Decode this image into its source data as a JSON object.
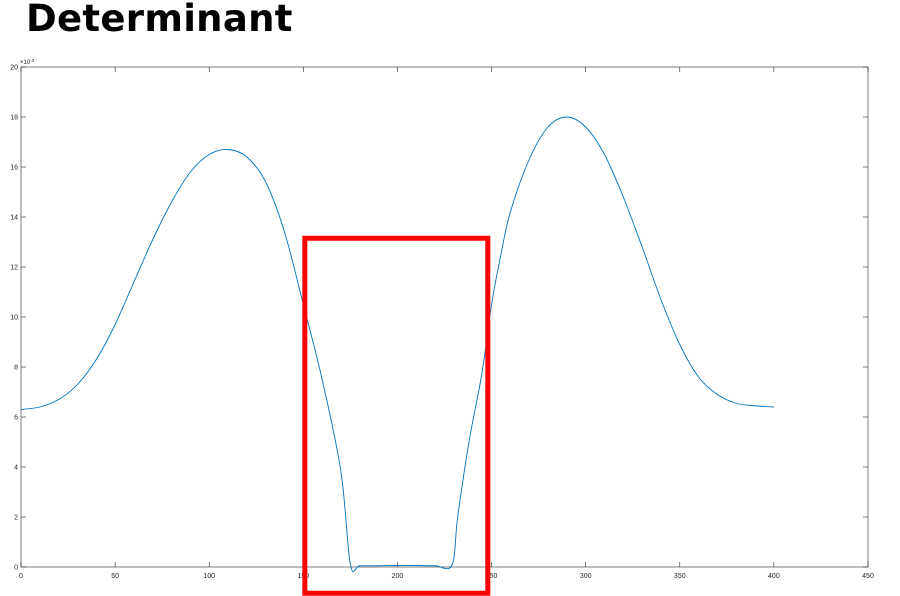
{
  "heading": "Determinant",
  "chart_data": {
    "type": "line",
    "title": "",
    "xlabel": "",
    "ylabel": "",
    "xlim": [
      0,
      450
    ],
    "ylim": [
      0,
      20
    ],
    "x_ticks": [
      0,
      50,
      100,
      150,
      200,
      250,
      300,
      350,
      400,
      450
    ],
    "x_tick_labels": [
      "0",
      "50",
      "100",
      "150",
      "200",
      "250",
      "300",
      "350",
      "400",
      "450"
    ],
    "y_ticks": [
      0,
      2,
      4,
      6,
      8,
      10,
      12,
      14,
      16,
      18,
      20
    ],
    "y_tick_labels": [
      "0",
      "2",
      "4",
      "6",
      "8",
      "10",
      "12",
      "14",
      "16",
      "18",
      "20"
    ],
    "y_exponent_label": "×10",
    "y_exponent_power": "-3",
    "grid": false,
    "series": [
      {
        "color": "#0072BD",
        "points": [
          [
            0,
            6.3
          ],
          [
            10,
            6.4
          ],
          [
            20,
            6.7
          ],
          [
            30,
            7.3
          ],
          [
            40,
            8.3
          ],
          [
            50,
            9.7
          ],
          [
            60,
            11.4
          ],
          [
            70,
            13.1
          ],
          [
            80,
            14.6
          ],
          [
            90,
            15.8
          ],
          [
            100,
            16.5
          ],
          [
            110,
            16.7
          ],
          [
            120,
            16.4
          ],
          [
            130,
            15.4
          ],
          [
            140,
            13.4
          ],
          [
            150,
            10.5
          ],
          [
            160,
            7.5
          ],
          [
            170,
            3.8
          ],
          [
            175,
            0.1
          ],
          [
            180,
            0.05
          ],
          [
            190,
            0.05
          ],
          [
            200,
            0.06
          ],
          [
            210,
            0.06
          ],
          [
            220,
            0.05
          ],
          [
            229,
            0.08
          ],
          [
            232,
            2.0
          ],
          [
            238,
            5.0
          ],
          [
            245,
            7.8
          ],
          [
            250,
            10.5
          ],
          [
            255,
            12.5
          ],
          [
            260,
            14.2
          ],
          [
            270,
            16.3
          ],
          [
            280,
            17.6
          ],
          [
            290,
            18.0
          ],
          [
            300,
            17.6
          ],
          [
            310,
            16.5
          ],
          [
            320,
            14.8
          ],
          [
            330,
            12.8
          ],
          [
            340,
            10.7
          ],
          [
            350,
            8.9
          ],
          [
            360,
            7.6
          ],
          [
            370,
            6.9
          ],
          [
            380,
            6.55
          ],
          [
            390,
            6.45
          ],
          [
            400,
            6.4
          ]
        ]
      }
    ],
    "highlight_box": {
      "color": "#ff0000",
      "x_range": [
        150,
        248
      ],
      "y_range": [
        -1.05,
        13.15
      ]
    }
  }
}
